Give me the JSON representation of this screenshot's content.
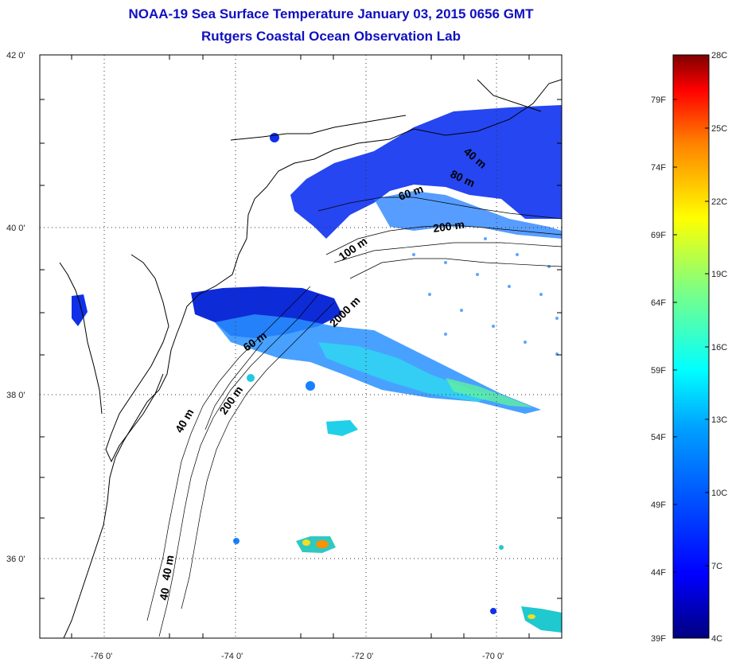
{
  "title": {
    "line1": "NOAA-19 Sea Surface Temperature January 03, 2015 0656 GMT",
    "line2": "Rutgers Coastal Ocean Observation Lab"
  },
  "map": {
    "lat_labels": [
      "42 0'",
      "40 0'",
      "38 0'",
      "36 0'"
    ],
    "lon_labels": [
      "-76 0'",
      "-74 0'",
      "-72 0'",
      "-70 0'"
    ],
    "isobath_labels": [
      "40 m",
      "80 m",
      "60 m",
      "80 m",
      "200 m",
      "100 m",
      "2000 m",
      "60 m",
      "40 m",
      "200 m",
      "40 m",
      "40"
    ]
  },
  "colorbar": {
    "fahrenheit_labels": [
      "79F",
      "74F",
      "69F",
      "64F",
      "59F",
      "54F",
      "49F",
      "44F",
      "39F"
    ],
    "celsius_labels": [
      "28C",
      "25C",
      "22C",
      "19C",
      "16C",
      "13C",
      "10C",
      "7C",
      "4C"
    ],
    "colors": [
      "#00007f",
      "#0000ff",
      "#0080ff",
      "#00ffff",
      "#80ff80",
      "#ffff00",
      "#ff8000",
      "#ff0000",
      "#7f0000"
    ]
  }
}
